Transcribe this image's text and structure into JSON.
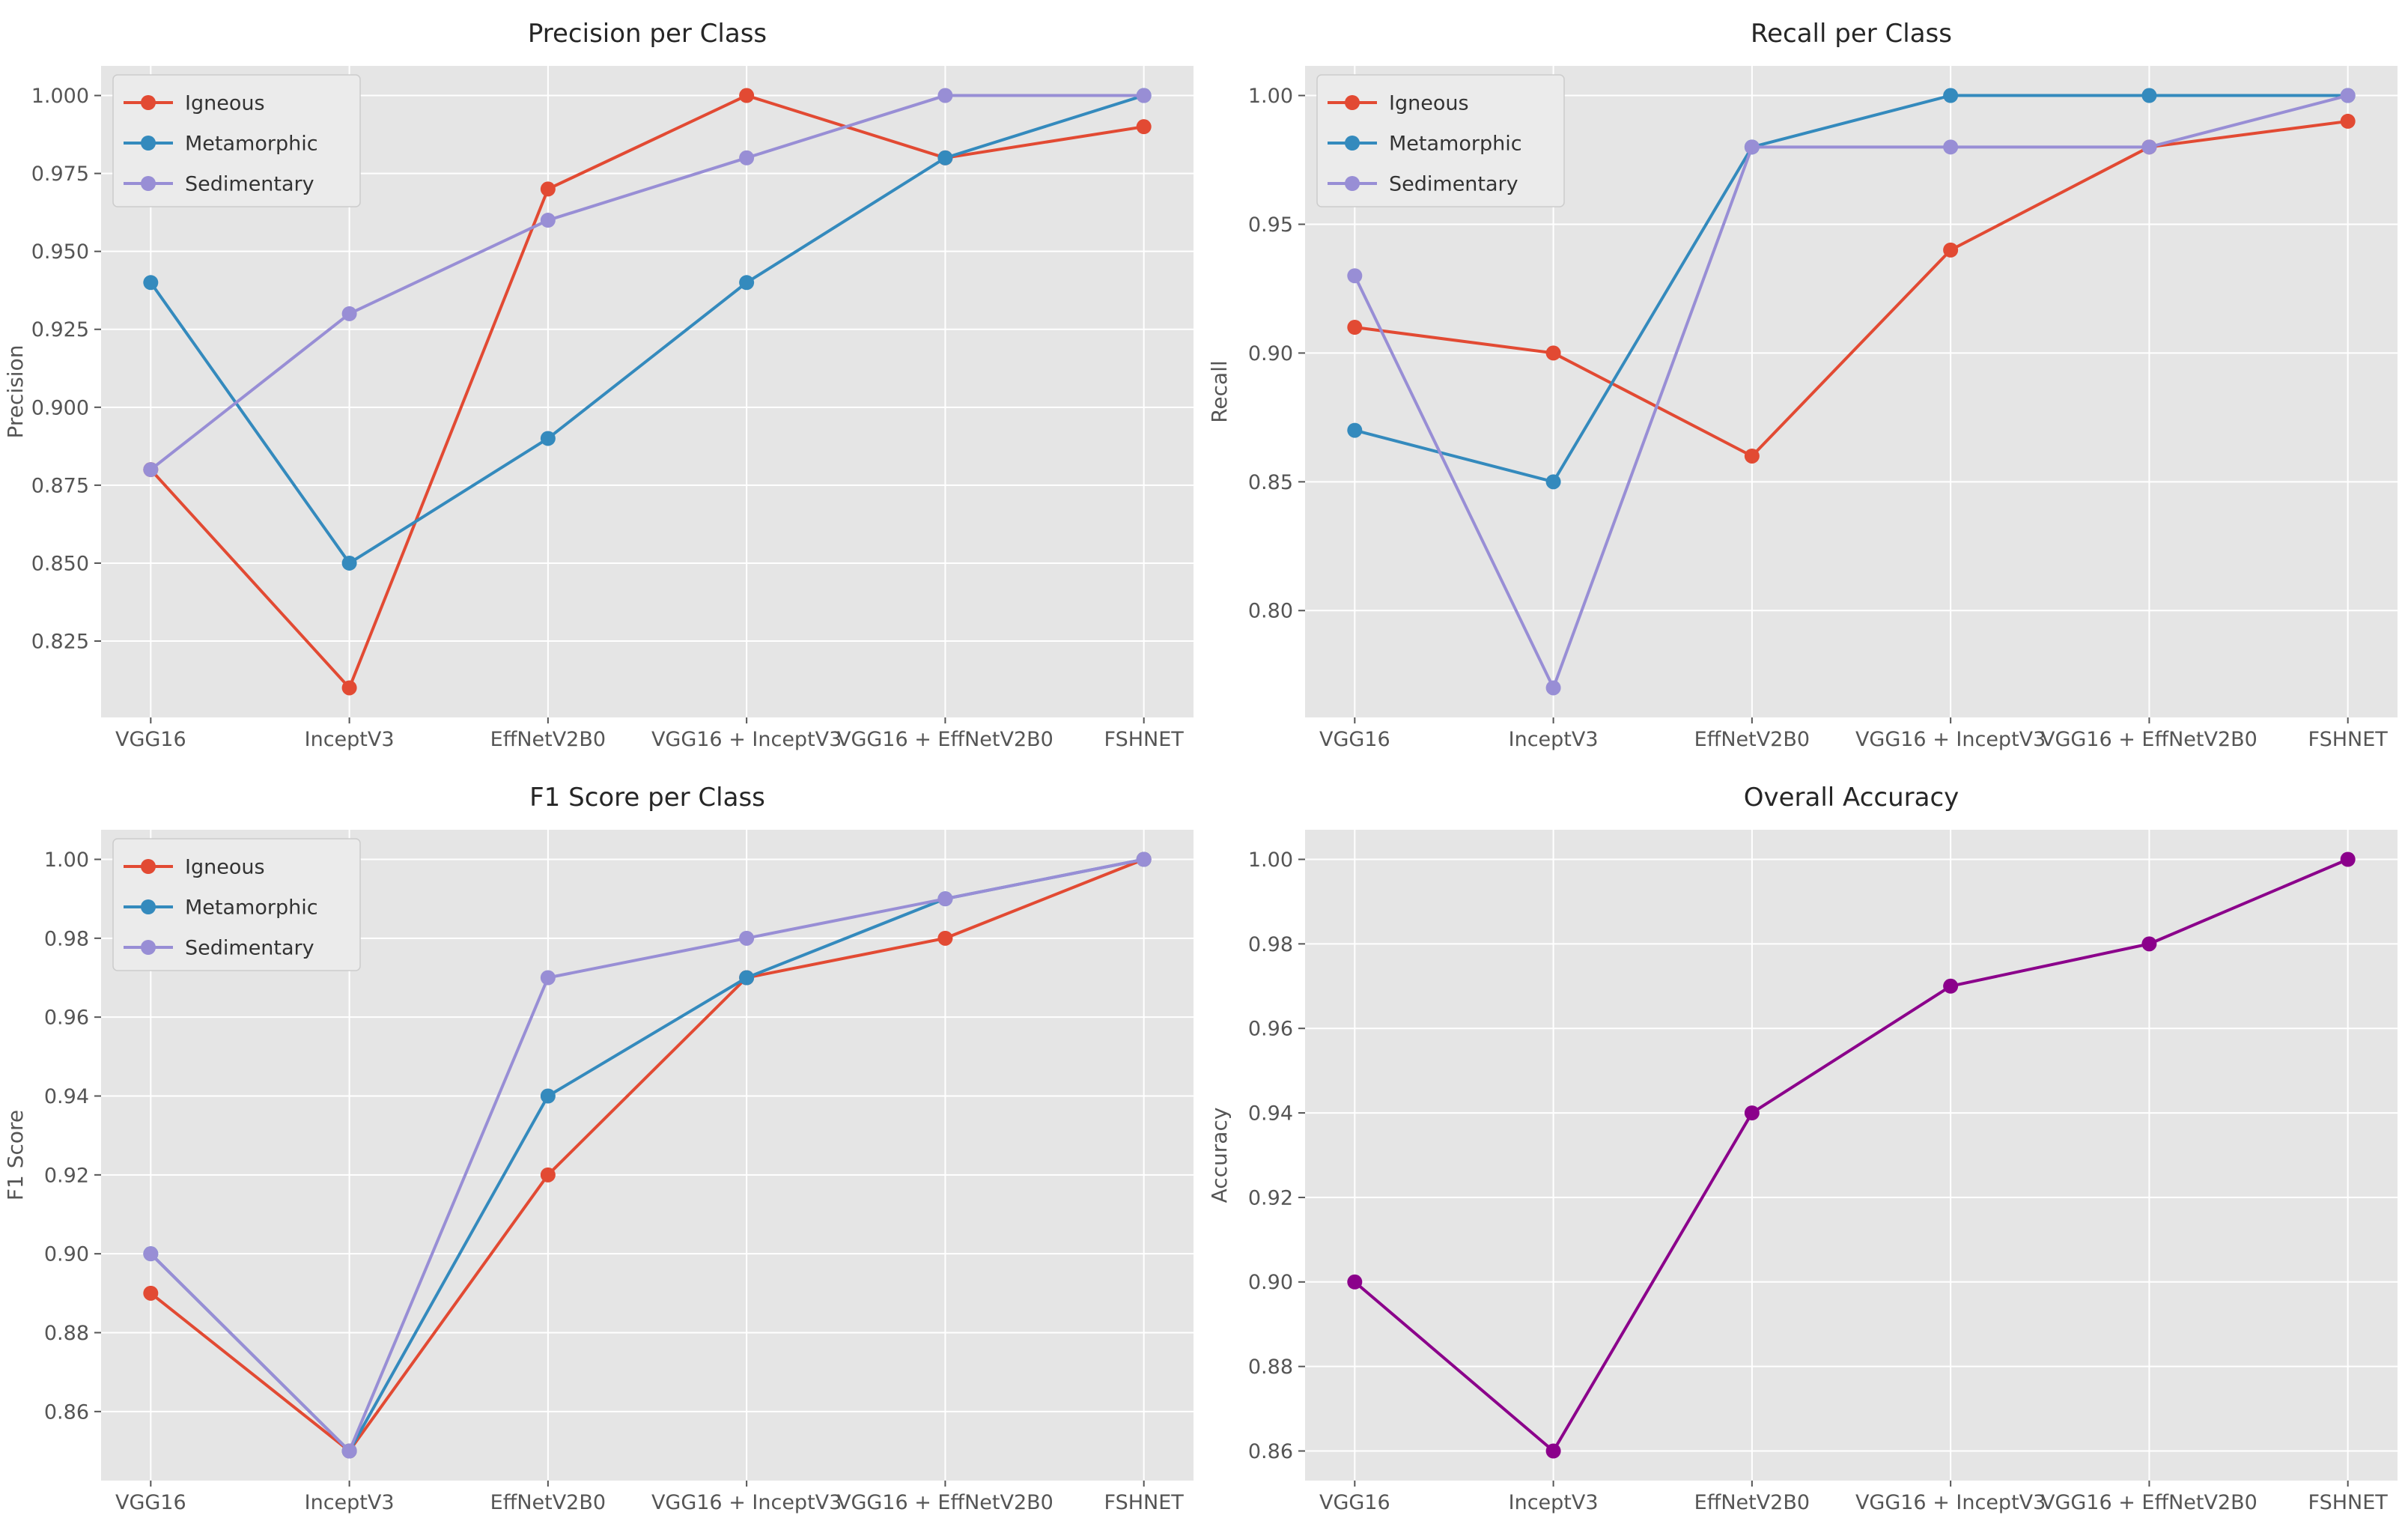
{
  "style": {
    "figure_bg": "#ffffff",
    "plot_bg": "#e5e5e5",
    "grid_color": "#ffffff",
    "tick_color": "#555555",
    "label_color": "#555555",
    "title_color": "#262626",
    "legend_bg": "#ebebeb",
    "legend_border": "#cccccc",
    "legend_text_color": "#333333",
    "palette": {
      "igneous": "#E24A33",
      "metamorphic": "#348ABD",
      "sedimentary": "#988ED5",
      "accuracy": "#8B008B"
    }
  },
  "chart_data": [
    {
      "type": "line",
      "title": "Precision per Class",
      "xlabel": "",
      "ylabel": "Precision",
      "categories": [
        "VGG16",
        "InceptV3",
        "EffNetV2B0",
        "VGG16 + InceptV3",
        "VGG16 + EffNetV2B0",
        "FSHNET"
      ],
      "series": [
        {
          "name": "Igneous",
          "color": "#E24A33",
          "values": [
            0.88,
            0.81,
            0.97,
            1.0,
            0.98,
            0.99
          ]
        },
        {
          "name": "Metamorphic",
          "color": "#348ABD",
          "values": [
            0.94,
            0.85,
            0.89,
            0.94,
            0.98,
            1.0
          ]
        },
        {
          "name": "Sedimentary",
          "color": "#988ED5",
          "values": [
            0.88,
            0.93,
            0.96,
            0.98,
            1.0,
            1.0
          ]
        }
      ],
      "yticks": [
        "0.825",
        "0.850",
        "0.875",
        "0.900",
        "0.925",
        "0.950",
        "0.975",
        "1.000"
      ],
      "ylim": [
        0.8005,
        1.0095
      ],
      "grid": true,
      "legend": true,
      "legend_position": "upper-left"
    },
    {
      "type": "line",
      "title": "Recall per Class",
      "xlabel": "",
      "ylabel": "Recall",
      "categories": [
        "VGG16",
        "InceptV3",
        "EffNetV2B0",
        "VGG16 + InceptV3",
        "VGG16 + EffNetV2B0",
        "FSHNET"
      ],
      "series": [
        {
          "name": "Igneous",
          "color": "#E24A33",
          "values": [
            0.91,
            0.9,
            0.86,
            0.94,
            0.98,
            0.99
          ]
        },
        {
          "name": "Metamorphic",
          "color": "#348ABD",
          "values": [
            0.87,
            0.85,
            0.98,
            1.0,
            1.0,
            1.0
          ]
        },
        {
          "name": "Sedimentary",
          "color": "#988ED5",
          "values": [
            0.93,
            0.77,
            0.98,
            0.98,
            0.98,
            1.0
          ]
        }
      ],
      "yticks": [
        "0.80",
        "0.85",
        "0.90",
        "0.95",
        "1.00"
      ],
      "ylim": [
        0.7585,
        1.0115
      ],
      "grid": true,
      "legend": true,
      "legend_position": "upper-left"
    },
    {
      "type": "line",
      "title": "F1 Score per Class",
      "xlabel": "",
      "ylabel": "F1 Score",
      "categories": [
        "VGG16",
        "InceptV3",
        "EffNetV2B0",
        "VGG16 + InceptV3",
        "VGG16 + EffNetV2B0",
        "FSHNET"
      ],
      "series": [
        {
          "name": "Igneous",
          "color": "#E24A33",
          "values": [
            0.89,
            0.85,
            0.92,
            0.97,
            0.98,
            1.0
          ]
        },
        {
          "name": "Metamorphic",
          "color": "#348ABD",
          "values": [
            0.9,
            0.85,
            0.94,
            0.97,
            0.99,
            1.0
          ]
        },
        {
          "name": "Sedimentary",
          "color": "#988ED5",
          "values": [
            0.9,
            0.85,
            0.97,
            0.98,
            0.99,
            1.0
          ]
        }
      ],
      "yticks": [
        "0.86",
        "0.88",
        "0.90",
        "0.92",
        "0.94",
        "0.96",
        "0.98",
        "1.00"
      ],
      "ylim": [
        0.8425,
        1.0075
      ],
      "grid": true,
      "legend": true,
      "legend_position": "upper-left"
    },
    {
      "type": "line",
      "title": "Overall Accuracy",
      "xlabel": "",
      "ylabel": "Accuracy",
      "categories": [
        "VGG16",
        "InceptV3",
        "EffNetV2B0",
        "VGG16 + InceptV3",
        "VGG16 + EffNetV2B0",
        "FSHNET"
      ],
      "series": [
        {
          "name": "Accuracy",
          "color": "#8B008B",
          "values": [
            0.9,
            0.86,
            0.94,
            0.97,
            0.98,
            1.0
          ]
        }
      ],
      "yticks": [
        "0.86",
        "0.88",
        "0.90",
        "0.92",
        "0.94",
        "0.96",
        "0.98",
        "1.00"
      ],
      "ylim": [
        0.853,
        1.007
      ],
      "grid": true,
      "legend": false,
      "legend_position": null
    }
  ]
}
